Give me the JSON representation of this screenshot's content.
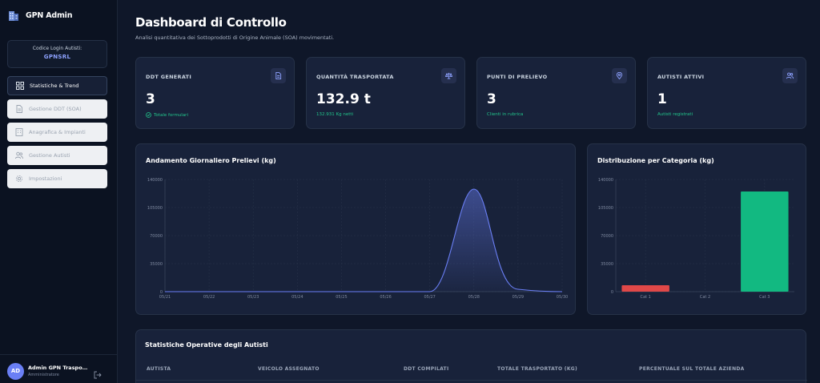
{
  "brand": {
    "title": "GPN Admin",
    "icon": "building-icon"
  },
  "login": {
    "label": "Codice Login Autisti:",
    "code": "GPNSRL"
  },
  "nav": [
    {
      "label": "Statistiche & Trend",
      "icon": "dashboard-grid-icon",
      "active": true
    },
    {
      "label": "Gestione DDT (SOA)",
      "icon": "document-icon",
      "active": false
    },
    {
      "label": "Anagrafica & Impianti",
      "icon": "building-icon",
      "active": false
    },
    {
      "label": "Gestione Autisti",
      "icon": "users-icon",
      "active": false
    },
    {
      "label": "Impostazioni",
      "icon": "gear-icon",
      "active": false
    }
  ],
  "user": {
    "initials": "AD",
    "name": "Admin GPN Trasporti",
    "role": "Amministratore"
  },
  "header": {
    "title": "Dashboard di Controllo",
    "subtitle": "Analisi quantitativa dei Sottoprodotti di Origine Animale (SOA) movimentati."
  },
  "stats": [
    {
      "label": "DDT GENERATI",
      "value": "3",
      "sub": "Totale formulari",
      "icon": "document-icon"
    },
    {
      "label": "QUANTITÀ TRASPORTATA",
      "value": "132.9 t",
      "sub": "132.931 Kg netti",
      "icon": "scale-icon"
    },
    {
      "label": "PUNTI DI PRELIEVO",
      "value": "3",
      "sub": "Clienti in rubrica",
      "icon": "map-pin-icon"
    },
    {
      "label": "AUTISTI ATTIVI",
      "value": "1",
      "sub": "Autisti registrati",
      "icon": "users-icon"
    }
  ],
  "colors": {
    "accent": "#6a7ff5",
    "positive": "#22c58b",
    "bar_red": "#e04848",
    "bar_green": "#12b981"
  },
  "chart_data": [
    {
      "type": "area",
      "title": "Andamento Giornaliero Prelievi (kg)",
      "x": [
        "05/21",
        "05/22",
        "05/23",
        "05/24",
        "05/25",
        "05/26",
        "05/27",
        "05/28",
        "05/29",
        "05/30"
      ],
      "values": [
        0,
        0,
        0,
        0,
        0,
        0,
        0,
        128000,
        0,
        0
      ],
      "y_ticks": [
        "0",
        "35000",
        "70000",
        "105000",
        "140000"
      ],
      "ylim": [
        0,
        140000
      ],
      "grid": true
    },
    {
      "type": "bar",
      "title": "Distribuzione per Categoria (kg)",
      "categories": [
        "Cat 1",
        "Cat 2",
        "Cat 3"
      ],
      "values": [
        8000,
        0,
        125000
      ],
      "y_ticks": [
        "0",
        "35000",
        "70000",
        "105000",
        "140000"
      ],
      "ylim": [
        0,
        140000
      ],
      "grid": true
    }
  ],
  "table": {
    "title": "Statistiche Operative degli Autisti",
    "columns": [
      "AUTISTA",
      "VEICOLO ASSEGNATO",
      "DDT COMPILATI",
      "TOTALE TRASPORTATO (KG)",
      "PERCENTUALE SUL TOTALE AZIENDA"
    ]
  }
}
